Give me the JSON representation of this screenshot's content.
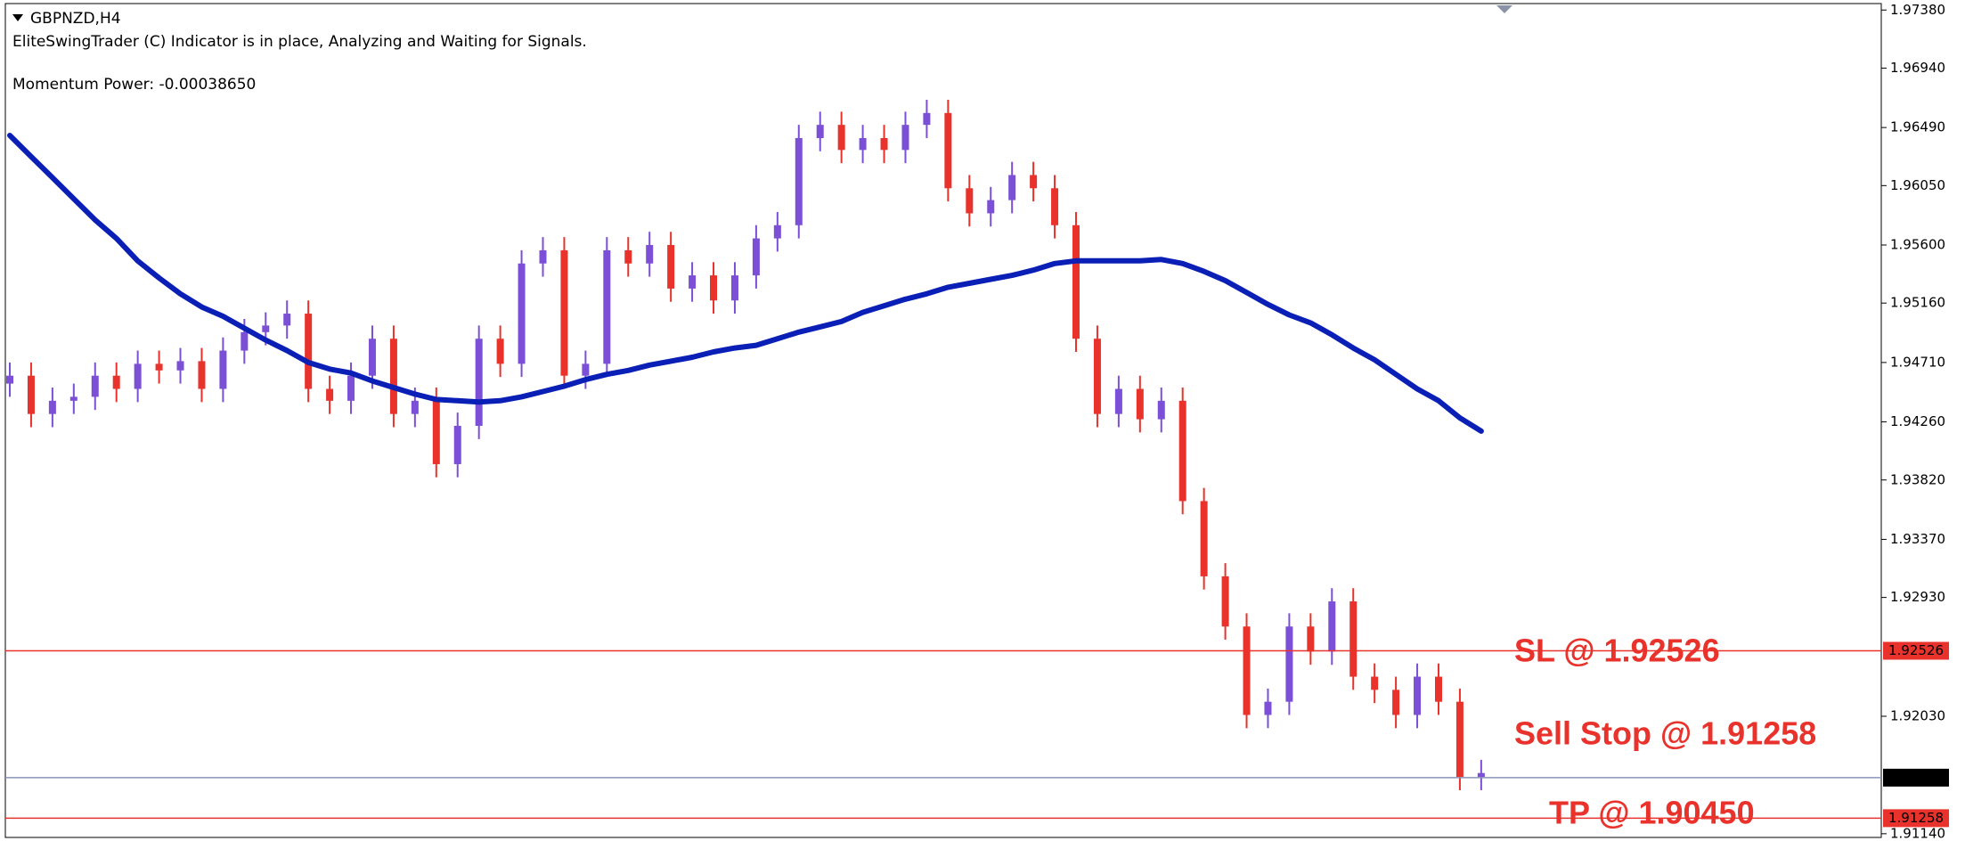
{
  "chart_data": {
    "type": "candlestick",
    "symbol": "GBPNZD,H4",
    "status": "EliteSwingTrader (C) Indicator is in place, Analyzing and Waiting for Signals.",
    "momentum": "Momentum Power: -0.00038650",
    "up_color": "#7b4fd6",
    "down_color": "#e8322b",
    "open": [
      1.9455,
      1.9461,
      1.9432,
      1.9442,
      1.9445,
      1.9461,
      1.9451,
      1.947,
      1.9465,
      1.9472,
      1.9451,
      1.948,
      1.9494,
      1.9499,
      1.9508,
      1.9451,
      1.9442,
      1.9461,
      1.9489,
      1.9432,
      1.9442,
      1.9394,
      1.9423,
      1.9489,
      1.947,
      1.9546,
      1.9556,
      1.9461,
      1.947,
      1.9556,
      1.9546,
      1.956,
      1.9527,
      1.9537,
      1.9518,
      1.9537,
      1.9565,
      1.9575,
      1.9641,
      1.9651,
      1.9632,
      1.9641,
      1.9632,
      1.9651,
      1.966,
      1.9603,
      1.9584,
      1.9594,
      1.9613,
      1.9603,
      1.9575,
      1.9489,
      1.9432,
      1.9451,
      1.9428,
      1.9442,
      1.9366,
      1.9309,
      1.9271,
      1.9204,
      1.9214,
      1.9271,
      1.9252,
      1.929,
      1.9233,
      1.9223,
      1.9204,
      1.9233,
      1.9214,
      1.9157
    ],
    "high": [
      1.9471,
      1.9471,
      1.9452,
      1.9455,
      1.9471,
      1.9471,
      1.948,
      1.948,
      1.9482,
      1.9482,
      1.949,
      1.9504,
      1.9509,
      1.9518,
      1.9518,
      1.9461,
      1.9471,
      1.9499,
      1.9499,
      1.9452,
      1.9452,
      1.9433,
      1.9499,
      1.9499,
      1.9556,
      1.9566,
      1.9566,
      1.948,
      1.9566,
      1.9566,
      1.957,
      1.957,
      1.9547,
      1.9547,
      1.9547,
      1.9575,
      1.9585,
      1.9651,
      1.9661,
      1.9661,
      1.9651,
      1.9651,
      1.9661,
      1.967,
      1.967,
      1.9613,
      1.9604,
      1.9623,
      1.9623,
      1.9613,
      1.9585,
      1.9499,
      1.9461,
      1.9461,
      1.9452,
      1.9452,
      1.9376,
      1.9319,
      1.9281,
      1.9224,
      1.9281,
      1.9281,
      1.93,
      1.93,
      1.9243,
      1.9233,
      1.9243,
      1.9243,
      1.9224,
      1.917
    ],
    "low": [
      1.9445,
      1.9422,
      1.9422,
      1.9432,
      1.9435,
      1.9441,
      1.9441,
      1.9455,
      1.9455,
      1.9441,
      1.9441,
      1.947,
      1.9484,
      1.9489,
      1.9441,
      1.9432,
      1.9432,
      1.9451,
      1.9422,
      1.9422,
      1.9384,
      1.9384,
      1.9413,
      1.946,
      1.946,
      1.9536,
      1.9451,
      1.9451,
      1.946,
      1.9536,
      1.9536,
      1.9517,
      1.9517,
      1.9508,
      1.9508,
      1.9527,
      1.9555,
      1.9565,
      1.9631,
      1.9622,
      1.9622,
      1.9622,
      1.9622,
      1.9641,
      1.9593,
      1.9574,
      1.9574,
      1.9584,
      1.9593,
      1.9565,
      1.9479,
      1.9422,
      1.9422,
      1.9418,
      1.9418,
      1.9356,
      1.9299,
      1.9261,
      1.9194,
      1.9194,
      1.9204,
      1.9242,
      1.9242,
      1.9223,
      1.9213,
      1.9194,
      1.9194,
      1.9204,
      1.9147,
      1.9147
    ],
    "close": [
      1.9461,
      1.9432,
      1.9442,
      1.9445,
      1.9461,
      1.9451,
      1.947,
      1.9465,
      1.9472,
      1.9451,
      1.948,
      1.9494,
      1.9499,
      1.9508,
      1.9451,
      1.9442,
      1.9461,
      1.9489,
      1.9432,
      1.9442,
      1.9394,
      1.9423,
      1.9489,
      1.947,
      1.9546,
      1.9556,
      1.9461,
      1.947,
      1.9556,
      1.9546,
      1.956,
      1.9527,
      1.9537,
      1.9518,
      1.9537,
      1.9565,
      1.9575,
      1.9641,
      1.9651,
      1.9632,
      1.9641,
      1.9632,
      1.9651,
      1.966,
      1.9603,
      1.9584,
      1.9594,
      1.9613,
      1.9603,
      1.9575,
      1.9489,
      1.9432,
      1.9451,
      1.9428,
      1.9442,
      1.9366,
      1.9309,
      1.9271,
      1.9204,
      1.9214,
      1.9271,
      1.9252,
      1.929,
      1.9233,
      1.9223,
      1.9204,
      1.9233,
      1.9214,
      1.9157,
      1.916
    ],
    "ma": {
      "color": "#0a1fb5",
      "values": [
        1.9643,
        1.9627,
        1.9611,
        1.9595,
        1.9579,
        1.9565,
        1.9548,
        1.9535,
        1.9523,
        1.9513,
        1.9506,
        1.9497,
        1.9488,
        1.948,
        1.9471,
        1.9466,
        1.9463,
        1.9457,
        1.9452,
        1.9447,
        1.9443,
        1.9442,
        1.9441,
        1.9442,
        1.9445,
        1.9449,
        1.9453,
        1.9458,
        1.9462,
        1.9465,
        1.9469,
        1.9472,
        1.9475,
        1.9479,
        1.9482,
        1.9484,
        1.9489,
        1.9494,
        1.9498,
        1.9502,
        1.9509,
        1.9514,
        1.9519,
        1.9523,
        1.9528,
        1.9531,
        1.9534,
        1.9537,
        1.9541,
        1.9546,
        1.9548,
        1.9548,
        1.9548,
        1.9548,
        1.9549,
        1.9546,
        1.954,
        1.9533,
        1.9524,
        1.9515,
        1.9507,
        1.9501,
        1.9492,
        1.9482,
        1.9473,
        1.9462,
        1.9451,
        1.9442,
        1.9429,
        1.9419
      ]
    },
    "ylim": [
      1.91112,
      1.97456
    ],
    "yticks": [
      {
        "value": 1.9738,
        "label": "1.97380"
      },
      {
        "value": 1.9694,
        "label": "1.96940"
      },
      {
        "value": 1.9649,
        "label": "1.96490"
      },
      {
        "value": 1.9605,
        "label": "1.96050"
      },
      {
        "value": 1.956,
        "label": "1.95600"
      },
      {
        "value": 1.9516,
        "label": "1.95160"
      },
      {
        "value": 1.9471,
        "label": "1.94710"
      },
      {
        "value": 1.9426,
        "label": "1.94260"
      },
      {
        "value": 1.9382,
        "label": "1.93820"
      },
      {
        "value": 1.9337,
        "label": "1.93370"
      },
      {
        "value": 1.9293,
        "label": "1.92930"
      },
      {
        "value": 1.9203,
        "label": "1.92030"
      },
      {
        "value": 1.9114,
        "label": "1.91140"
      }
    ],
    "levels": [
      {
        "value": 1.92526,
        "color": "#e8322b",
        "box": "#e8322b"
      },
      {
        "value": 1.91565,
        "color": "#8a93b8",
        "box": "#000000"
      },
      {
        "value": 1.91258,
        "color": "#e8322b",
        "box": "#e8322b"
      }
    ],
    "annotations": [
      {
        "text": "SL @ 1.92526",
        "color": "#e8322b"
      },
      {
        "text": "Sell Stop @ 1.91258",
        "color": "#e8322b"
      },
      {
        "text": "TP @ 1.90450",
        "color": "#e8322b"
      }
    ]
  }
}
